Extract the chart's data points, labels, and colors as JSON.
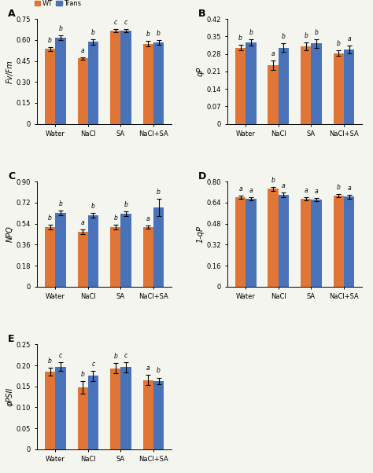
{
  "categories": [
    "Water",
    "NaCl",
    "SA",
    "NaCl+SA"
  ],
  "orange_color": "#E07535",
  "blue_color": "#4A72B8",
  "bg_color": "#F5F5F0",
  "panels": [
    {
      "label": "A",
      "ylabel": "Fv/Fm",
      "ylim": [
        0,
        0.75
      ],
      "yticks": [
        0,
        0.15,
        0.3,
        0.45,
        0.6,
        0.75
      ],
      "ytick_labels": [
        "0",
        "0.15",
        "0.30",
        "0.45",
        "0.60",
        "0.75"
      ],
      "wt_values": [
        0.535,
        0.467,
        0.665,
        0.573
      ],
      "trans_values": [
        0.615,
        0.585,
        0.667,
        0.582
      ],
      "wt_errors": [
        0.015,
        0.01,
        0.012,
        0.018
      ],
      "trans_errors": [
        0.018,
        0.02,
        0.012,
        0.018
      ],
      "wt_letters": [
        "b",
        "a",
        "c",
        "b"
      ],
      "trans_letters": [
        "b",
        "b",
        "c",
        "b"
      ]
    },
    {
      "label": "B",
      "ylabel": "qP",
      "ylim": [
        0,
        0.42
      ],
      "yticks": [
        0,
        0.07,
        0.14,
        0.21,
        0.28,
        0.35,
        0.42
      ],
      "ytick_labels": [
        "0",
        "0.07",
        "0.14",
        "0.21",
        "0.28",
        "0.35",
        "0.42"
      ],
      "wt_values": [
        0.305,
        0.235,
        0.31,
        0.283
      ],
      "trans_values": [
        0.325,
        0.305,
        0.322,
        0.298
      ],
      "wt_errors": [
        0.012,
        0.018,
        0.015,
        0.012
      ],
      "trans_errors": [
        0.012,
        0.018,
        0.018,
        0.015
      ],
      "wt_letters": [
        "b",
        "a",
        "b",
        "b"
      ],
      "trans_letters": [
        "b",
        "b",
        "b",
        "a"
      ]
    },
    {
      "label": "C",
      "ylabel": "NPQ",
      "ylim": [
        0,
        0.9
      ],
      "yticks": [
        0,
        0.18,
        0.36,
        0.54,
        0.72,
        0.9
      ],
      "ytick_labels": [
        "0",
        "0.18",
        "0.36",
        "0.54",
        "0.72",
        "0.90"
      ],
      "wt_values": [
        0.51,
        0.47,
        0.51,
        0.51
      ],
      "trans_values": [
        0.63,
        0.61,
        0.625,
        0.68
      ],
      "wt_errors": [
        0.018,
        0.022,
        0.018,
        0.015
      ],
      "trans_errors": [
        0.02,
        0.02,
        0.02,
        0.075
      ],
      "wt_letters": [
        "b",
        "a",
        "b",
        "a"
      ],
      "trans_letters": [
        "b",
        "b",
        "b",
        "b"
      ]
    },
    {
      "label": "D",
      "ylabel": "1-qP",
      "ylim": [
        0,
        0.8
      ],
      "yticks": [
        0,
        0.16,
        0.32,
        0.48,
        0.64,
        0.8
      ],
      "ytick_labels": [
        "0",
        "0.16",
        "0.32",
        "0.48",
        "0.64",
        "0.80"
      ],
      "wt_values": [
        0.68,
        0.745,
        0.668,
        0.695
      ],
      "trans_values": [
        0.667,
        0.7,
        0.665,
        0.685
      ],
      "wt_errors": [
        0.012,
        0.015,
        0.012,
        0.012
      ],
      "trans_errors": [
        0.012,
        0.018,
        0.012,
        0.015
      ],
      "wt_letters": [
        "a",
        "b",
        "a",
        "b"
      ],
      "trans_letters": [
        "a",
        "a",
        "a",
        "a"
      ]
    },
    {
      "label": "E",
      "ylabel": "φPSII",
      "ylim": [
        0,
        0.25
      ],
      "yticks": [
        0,
        0.05,
        0.1,
        0.15,
        0.2,
        0.25
      ],
      "ytick_labels": [
        "0",
        "0.05",
        "0.10",
        "0.15",
        "0.20",
        "0.25"
      ],
      "wt_values": [
        0.185,
        0.147,
        0.193,
        0.165
      ],
      "trans_values": [
        0.197,
        0.175,
        0.196,
        0.163
      ],
      "wt_errors": [
        0.01,
        0.015,
        0.012,
        0.012
      ],
      "trans_errors": [
        0.01,
        0.012,
        0.012,
        0.008
      ],
      "wt_letters": [
        "b",
        "b",
        "b",
        "a"
      ],
      "trans_letters": [
        "c",
        "c",
        "c",
        "b"
      ]
    }
  ]
}
